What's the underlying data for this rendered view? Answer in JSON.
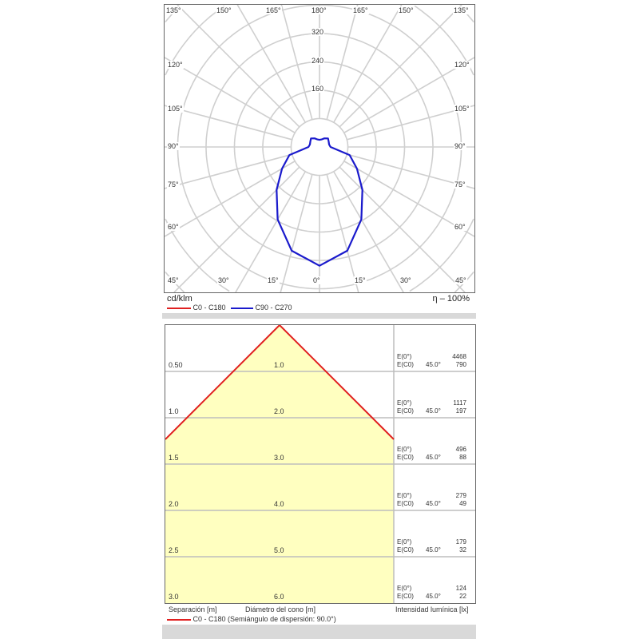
{
  "chart_data": [
    {
      "type": "polar",
      "unit_label": "cd/klm",
      "efficiency": "η – 100%",
      "radial_ticks": [
        160,
        240,
        320
      ],
      "radial_step": 80,
      "angle_labels_top": [
        "135°",
        "150°",
        "165°",
        "180°",
        "165°",
        "150°",
        "135°"
      ],
      "angle_labels_left": [
        "120°",
        "105°",
        "90°",
        "75°",
        "60°"
      ],
      "angle_labels_right": [
        "120°",
        "105°",
        "90°",
        "75°",
        "60°"
      ],
      "angle_labels_bottom": [
        "45°",
        "30°",
        "15°",
        "0°",
        "15°",
        "30°",
        "45°"
      ],
      "grid": true,
      "legend": [
        {
          "name": "C0 - C180",
          "color": "#e02020"
        },
        {
          "name": "C90 - C270",
          "color": "#1a1acc"
        }
      ],
      "series": [
        {
          "name": "C90 - C270",
          "color": "#1a1acc",
          "angles": [
            0,
            15,
            30,
            45,
            60,
            75,
            90,
            105,
            120,
            135,
            150,
            165,
            180
          ],
          "values": [
            335,
            303,
            236,
            171,
            122,
            88,
            31,
            28,
            30,
            34,
            28,
            22,
            20
          ]
        }
      ]
    },
    {
      "type": "cone",
      "half_angle_deg": 90.0,
      "rows": [
        {
          "separation": "0.50",
          "diameter": "1.0",
          "e0_label": "E(0°)",
          "e0": "4468",
          "ec0_label": "E(C0)",
          "angle": "45.0°",
          "ec0": "790"
        },
        {
          "separation": "1.0",
          "diameter": "2.0",
          "e0_label": "E(0°)",
          "e0": "1117",
          "ec0_label": "E(C0)",
          "angle": "45.0°",
          "ec0": "197"
        },
        {
          "separation": "1.5",
          "diameter": "3.0",
          "e0_label": "E(0°)",
          "e0": "496",
          "ec0_label": "E(C0)",
          "angle": "45.0°",
          "ec0": "88"
        },
        {
          "separation": "2.0",
          "diameter": "4.0",
          "e0_label": "E(0°)",
          "e0": "279",
          "ec0_label": "E(C0)",
          "angle": "45.0°",
          "ec0": "49"
        },
        {
          "separation": "2.5",
          "diameter": "5.0",
          "e0_label": "E(0°)",
          "e0": "179",
          "ec0_label": "E(C0)",
          "angle": "45.0°",
          "ec0": "32"
        },
        {
          "separation": "3.0",
          "diameter": "6.0",
          "e0_label": "E(0°)",
          "e0": "124",
          "ec0_label": "E(C0)",
          "angle": "45.0°",
          "ec0": "22"
        }
      ],
      "xlabel_left": "Separación [m]",
      "xlabel_center": "Diámetro del cono [m]",
      "xlabel_right": "Intensidad lumínica [lx]",
      "legend": {
        "name": "C0 - C180 (Semiángulo de dispersión: 90.0°)",
        "color": "#e02020"
      },
      "fill_color": "#ffffc0"
    }
  ]
}
